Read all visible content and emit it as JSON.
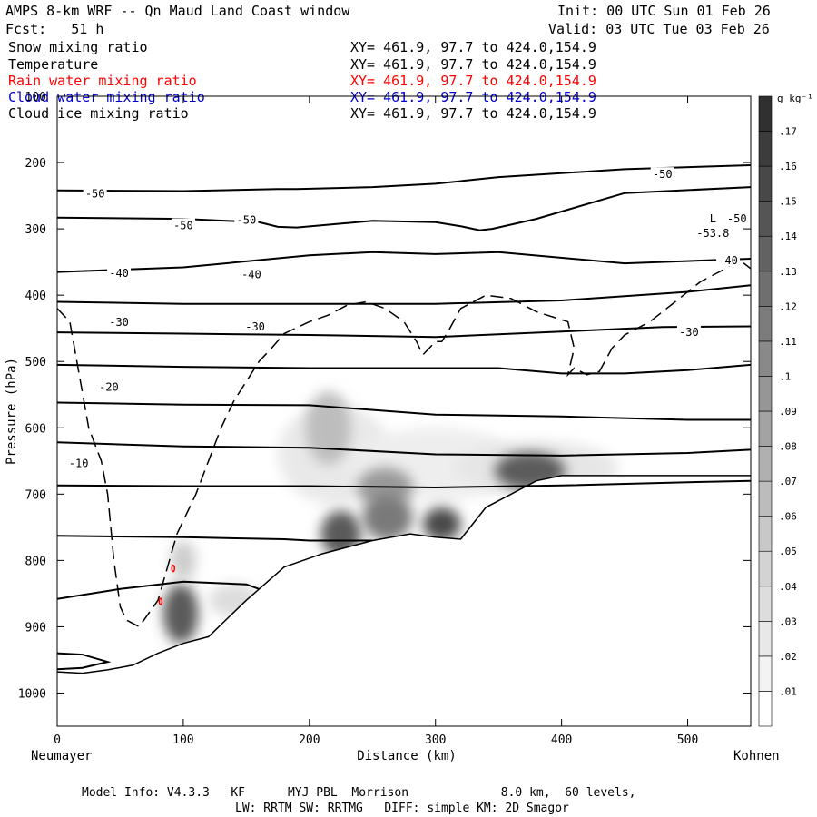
{
  "header": {
    "title": "AMPS 8-km WRF -- Qn Maud Land Coast window",
    "init": "Init: 00 UTC Sun 01 Feb 26",
    "fcst": "Fcst:   51 h",
    "valid": "Valid: 03 UTC Tue 03 Feb 26"
  },
  "fields": [
    {
      "name": "Snow mixing ratio",
      "xy": "XY= 461.9, 97.7 to 424.0,154.9",
      "color": "#000000"
    },
    {
      "name": "Temperature",
      "xy": "XY= 461.9, 97.7 to 424.0,154.9",
      "color": "#000000"
    },
    {
      "name": "Rain water mixing ratio",
      "xy": "XY= 461.9, 97.7 to 424.0,154.9",
      "color": "#ff0000"
    },
    {
      "name": "Cloud water mixing ratio",
      "xy": "XY= 461.9, 97.7 to 424.0,154.9",
      "color": "#0000cc"
    },
    {
      "name": "Cloud ice mixing ratio",
      "xy": "XY= 461.9, 97.7 to 424.0,154.9",
      "color": "#000000"
    }
  ],
  "footer": {
    "line1": "Model Info: V4.3.3   KF      MYJ PBL  Morrison             8.0 km,  60 levels,",
    "line2": "LW: RRTM SW: RRTMG   DIFF: simple KM: 2D Smagor"
  },
  "chart_data": {
    "type": "cross-section contour",
    "title": "AMPS 8-km WRF -- Qn Maud Land Coast window",
    "xlabel": "Distance (km)",
    "ylabel": "Pressure (hPa)",
    "xlim": [
      0,
      550
    ],
    "ylim": [
      1050,
      100
    ],
    "x_ticks": [
      0,
      100,
      200,
      300,
      400,
      500
    ],
    "y_ticks": [
      100,
      200,
      300,
      400,
      500,
      600,
      700,
      800,
      900,
      1000
    ],
    "left_end_label": "Neumayer",
    "right_end_label": "Kohnen",
    "colorbar": {
      "units": "g kg⁻¹",
      "ticks": [
        ".01",
        ".02",
        ".03",
        ".04",
        ".05",
        ".06",
        ".07",
        ".08",
        ".09",
        ".1",
        ".11",
        ".12",
        ".13",
        ".14",
        ".15",
        ".16",
        ".17"
      ],
      "grays": [
        "#ffffff",
        "#f3f3f3",
        "#e8e8e8",
        "#dddddd",
        "#d3d3d3",
        "#c8c8c8",
        "#bcbcbc",
        "#b0b0b0",
        "#a3a3a3",
        "#969696",
        "#898989",
        "#7c7c7c",
        "#6f6f6f",
        "#626262",
        "#555555",
        "#484848",
        "#3c3c3c",
        "#303030"
      ]
    },
    "temperature_contour_labels": [
      "-50",
      "-50",
      "-50",
      "-50",
      "-50",
      "-40",
      "-40",
      "-40",
      "-30",
      "-30",
      "-30",
      "-20",
      "-10"
    ],
    "low_marker": {
      "symbol": "L",
      "value": "-53.8"
    },
    "temperature_isotherms_hpa": [
      {
        "x": [
          0,
          100,
          175,
          190,
          250,
          300,
          350,
          450,
          550
        ],
        "p": [
          242,
          243,
          240,
          240,
          237,
          232,
          222,
          210,
          204
        ]
      },
      {
        "x": [
          0,
          100,
          160,
          175,
          190,
          250,
          300,
          320,
          335,
          345,
          380,
          450,
          550
        ],
        "p": [
          283,
          285,
          290,
          297,
          298,
          288,
          290,
          296,
          302,
          300,
          285,
          246,
          237
        ]
      },
      {
        "x": [
          0,
          100,
          200,
          250,
          300,
          350,
          450,
          550
        ],
        "p": [
          365,
          358,
          340,
          335,
          338,
          335,
          352,
          345
        ]
      },
      {
        "x": [
          0,
          100,
          200,
          300,
          400,
          500,
          550
        ],
        "p": [
          410,
          413,
          413,
          413,
          408,
          395,
          385
        ]
      },
      {
        "x": [
          0,
          100,
          200,
          300,
          400,
          480,
          550
        ],
        "p": [
          456,
          458,
          460,
          463,
          455,
          448,
          447
        ]
      },
      {
        "x": [
          0,
          100,
          200,
          300,
          350,
          400,
          450,
          500,
          550
        ],
        "p": [
          505,
          508,
          510,
          510,
          510,
          518,
          518,
          513,
          505
        ]
      },
      {
        "x": [
          0,
          100,
          200,
          300,
          400,
          500,
          550
        ],
        "p": [
          562,
          565,
          566,
          580,
          583,
          588,
          588
        ]
      },
      {
        "x": [
          0,
          100,
          200,
          300,
          400,
          500,
          550
        ],
        "p": [
          622,
          628,
          630,
          640,
          642,
          638,
          633
        ]
      },
      {
        "x": [
          0,
          100,
          200,
          300,
          400,
          500,
          550
        ],
        "p": [
          687,
          688,
          688,
          690,
          687,
          682,
          680
        ]
      },
      {
        "x": [
          0,
          100,
          180,
          200,
          250
        ],
        "p": [
          763,
          765,
          768,
          770,
          770
        ]
      },
      {
        "x": [
          0,
          50,
          100,
          150,
          160
        ],
        "p": [
          858,
          843,
          832,
          836,
          843
        ]
      },
      {
        "x": [
          0,
          20,
          40,
          20,
          0
        ],
        "p": [
          940,
          942,
          953,
          962,
          964
        ]
      }
    ],
    "terrain_hpa": {
      "x": [
        0,
        20,
        40,
        60,
        80,
        100,
        120,
        150,
        180,
        210,
        250,
        280,
        300,
        320,
        340,
        360,
        380,
        400,
        450,
        500,
        550
      ],
      "p": [
        968,
        970,
        965,
        958,
        940,
        925,
        915,
        860,
        810,
        790,
        770,
        760,
        765,
        768,
        720,
        700,
        680,
        672,
        672,
        672,
        672
      ]
    },
    "cloud_ice_outline_hpa": {
      "x": [
        0,
        10,
        25,
        35,
        40,
        45,
        50,
        55,
        65,
        80,
        95,
        110,
        120,
        130,
        140,
        150,
        160,
        170,
        180,
        200,
        215,
        230,
        245,
        260,
        275,
        285,
        290,
        295,
        300,
        305,
        310,
        320,
        340,
        360,
        380,
        405,
        410,
        405,
        410,
        420,
        430,
        440,
        450,
        470,
        490,
        510,
        530,
        540,
        550
      ],
      "p": [
        420,
        440,
        600,
        650,
        700,
        800,
        870,
        890,
        900,
        860,
        760,
        700,
        650,
        600,
        560,
        530,
        500,
        480,
        458,
        440,
        430,
        415,
        410,
        420,
        440,
        470,
        490,
        480,
        470,
        470,
        455,
        420,
        400,
        405,
        425,
        440,
        480,
        520,
        510,
        520,
        515,
        480,
        460,
        440,
        410,
        380,
        360,
        345,
        360
      ]
    },
    "cloud_maxima": [
      {
        "x_km": 215,
        "p_hpa": 600,
        "max_g_kg": 0.09
      },
      {
        "x_km": 225,
        "p_hpa": 760,
        "max_g_kg": 0.16
      },
      {
        "x_km": 260,
        "p_hpa": 690,
        "max_g_kg": 0.11
      },
      {
        "x_km": 305,
        "p_hpa": 745,
        "max_g_kg": 0.16
      },
      {
        "x_km": 375,
        "p_hpa": 665,
        "max_g_kg": 0.15
      },
      {
        "x_km": 100,
        "p_hpa": 880,
        "max_g_kg": 0.15
      }
    ],
    "rain_water_points": [
      {
        "x_km": 92,
        "p_hpa": 812
      },
      {
        "x_km": 82,
        "p_hpa": 862
      }
    ]
  }
}
